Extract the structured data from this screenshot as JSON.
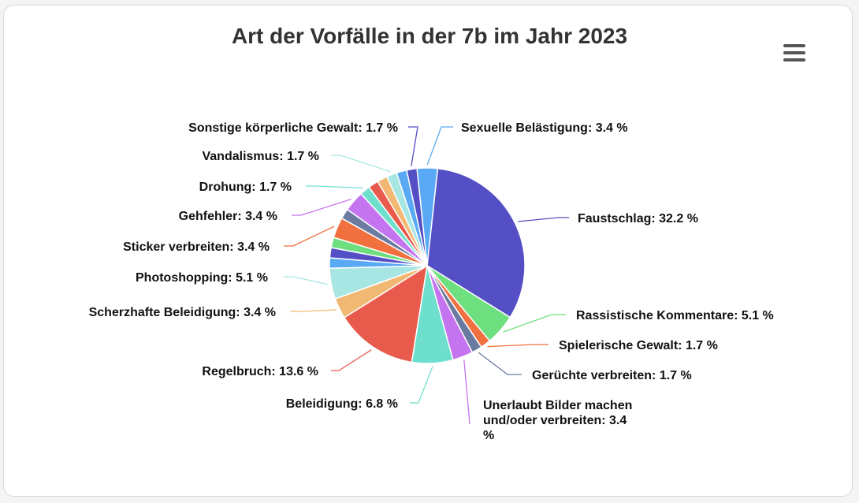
{
  "chart_data": {
    "type": "pie",
    "title": "Art der Vorfälle in der 7b im Jahr 2023",
    "slices": [
      {
        "name": "Sexuelle Belästigung",
        "value": 3.4,
        "color": "#5aa9f5",
        "label": "Sexuelle Belästigung: 3.4 %"
      },
      {
        "name": "Faustschlag",
        "value": 32.2,
        "color": "#544fc5",
        "label": "Faustschlag: 32.2 %"
      },
      {
        "name": "Rassistische Kommentare",
        "value": 5.1,
        "color": "#6ddf7e",
        "label": "Rassistische Kommentare: 5.1 %"
      },
      {
        "name": "Spielerische Gewalt",
        "value": 1.7,
        "color": "#f0713f",
        "label": "Spielerische Gewalt: 1.7 %"
      },
      {
        "name": "Gerüchte verbreiten",
        "value": 1.7,
        "color": "#6b7aa1",
        "label": "Gerüchte verbreiten: 1.7 %"
      },
      {
        "name": "Unerlaubt Bilder machen und/oder verbreiten",
        "value": 3.4,
        "color": "#c574ef",
        "label": [
          "Unerlaubt Bilder machen",
          "und/oder verbreiten: 3.4",
          "%"
        ]
      },
      {
        "name": "Beleidigung",
        "value": 6.8,
        "color": "#6fdfcd",
        "label": "Beleidigung: 6.8 %"
      },
      {
        "name": "Regelbruch",
        "value": 13.6,
        "color": "#e85b4c",
        "label": "Regelbruch: 13.6 %"
      },
      {
        "name": "Scherzhafte Beleidigung",
        "value": 3.4,
        "color": "#f1b874",
        "label": "Scherzhafte Beleidigung: 3.4 %"
      },
      {
        "name": "Photoshopping",
        "value": 5.1,
        "color": "#a8e6e3",
        "label": "Photoshopping: 5.1 %"
      },
      {
        "name": "Sexuelle Belästigung",
        "value": 1.7,
        "color": "#5aa9f5",
        "label": ""
      },
      {
        "name": "Faustschlag",
        "value": 1.7,
        "color": "#544fc5",
        "label": ""
      },
      {
        "name": "Rassistische Kommentare",
        "value": 1.7,
        "color": "#6ddf7e",
        "label": ""
      },
      {
        "name": "Sticker verbreiten",
        "value": 3.4,
        "color": "#f0713f",
        "label": "Sticker verbreiten: 3.4 %"
      },
      {
        "name": "Gehfehler",
        "value": 1.7,
        "color": "#6b7aa1",
        "label": ""
      },
      {
        "name": "Gehfehler",
        "value": 3.4,
        "color": "#c574ef",
        "label": "Gehfehler: 3.4 %"
      },
      {
        "name": "Drohung",
        "value": 1.7,
        "color": "#6fdfcd",
        "label": "Drohung: 1.7 %"
      },
      {
        "name": "Drohung",
        "value": 1.7,
        "color": "#e85b4c",
        "label": ""
      },
      {
        "name": "Vandalismus",
        "value": 1.7,
        "color": "#f1b874",
        "label": ""
      },
      {
        "name": "Vandalismus",
        "value": 1.7,
        "color": "#a8e6e3",
        "label": "Vandalismus: 1.7 %"
      },
      {
        "name": "Sexuelle Belästigung",
        "value": 1.7,
        "color": "#5aa9f5",
        "label": ""
      },
      {
        "name": "Sonstige körperliche Gewalt",
        "value": 1.7,
        "color": "#544fc5",
        "label": "Sonstige körperliche Gewalt: 1.7 %"
      }
    ]
  }
}
